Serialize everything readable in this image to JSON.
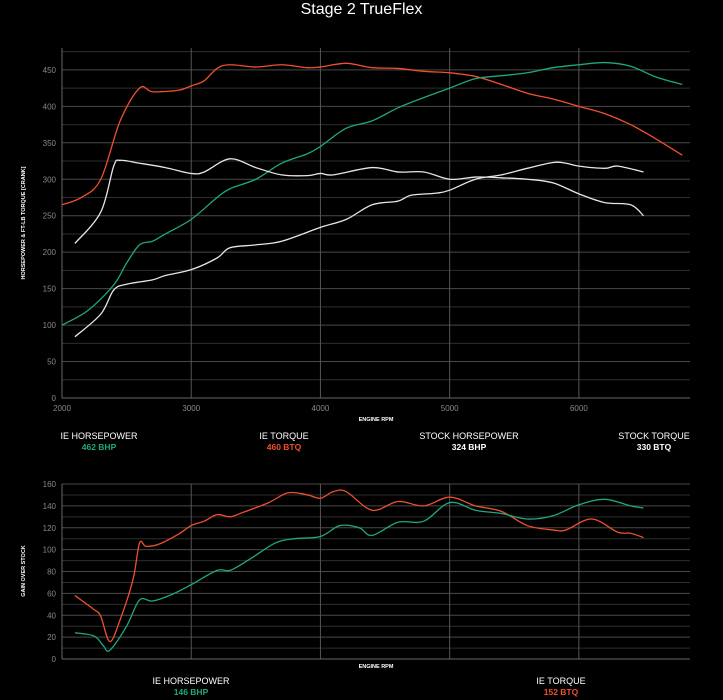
{
  "title": "Stage 2 TrueFlex",
  "colors": {
    "ie_torque": "#f0502c",
    "ie_horsepower": "#1fa880",
    "stock": "#e6e6e6"
  },
  "chart_data": [
    {
      "type": "line",
      "xlabel": "ENGINE RPM",
      "ylabel": "HORSEPOWER & FT-LB TORQUE [CRANK]",
      "xlim": [
        2000,
        6860
      ],
      "ylim": [
        0,
        480
      ],
      "xticks": [
        2000,
        3000,
        4000,
        5000,
        6000
      ],
      "yticks": [
        0,
        50,
        100,
        150,
        200,
        250,
        300,
        350,
        400,
        450
      ],
      "grid": true,
      "series": [
        {
          "key": "ie_torque",
          "x": [
            2000,
            2150,
            2300,
            2450,
            2600,
            2700,
            2900,
            3000,
            3100,
            3200,
            3300,
            3500,
            3700,
            3900,
            4000,
            4200,
            4400,
            4600,
            4800,
            5000,
            5200,
            5400,
            5600,
            5800,
            6000,
            6200,
            6400,
            6600,
            6800
          ],
          "values": [
            265,
            275,
            300,
            380,
            425,
            420,
            422,
            428,
            435,
            452,
            457,
            454,
            457,
            453,
            454,
            459,
            453,
            452,
            448,
            446,
            441,
            430,
            418,
            410,
            400,
            390,
            375,
            355,
            333
          ]
        },
        {
          "key": "ie_horsepower",
          "x": [
            2000,
            2200,
            2400,
            2500,
            2600,
            2700,
            2800,
            3000,
            3200,
            3300,
            3500,
            3700,
            3900,
            4000,
            4200,
            4400,
            4600,
            4800,
            5000,
            5200,
            5400,
            5600,
            5800,
            6000,
            6200,
            6400,
            6600,
            6800
          ],
          "values": [
            100,
            120,
            155,
            185,
            210,
            215,
            225,
            245,
            275,
            287,
            300,
            322,
            335,
            345,
            370,
            380,
            398,
            412,
            425,
            438,
            442,
            446,
            453,
            457,
            460,
            455,
            440,
            430
          ]
        },
        {
          "key": "stock",
          "x": [
            2100,
            2300,
            2400,
            2450,
            2600,
            2800,
            3000,
            3100,
            3300,
            3500,
            3700,
            3900,
            4000,
            4100,
            4400,
            4600,
            4800,
            5000,
            5200,
            5400,
            5600,
            5800,
            6000,
            6200,
            6400,
            6500
          ],
          "values": [
            212,
            255,
            318,
            326,
            322,
            316,
            308,
            310,
            328,
            316,
            306,
            305,
            308,
            306,
            316,
            310,
            310,
            300,
            303,
            302,
            300,
            295,
            280,
            268,
            265,
            250
          ]
        },
        {
          "key": "stock",
          "x": [
            2100,
            2300,
            2400,
            2500,
            2700,
            2800,
            3000,
            3200,
            3300,
            3500,
            3700,
            4000,
            4200,
            4400,
            4600,
            4700,
            4900,
            5000,
            5200,
            5400,
            5600,
            5800,
            5900,
            6000,
            6200,
            6300,
            6500
          ],
          "values": [
            84,
            115,
            148,
            156,
            162,
            168,
            176,
            192,
            206,
            210,
            215,
            234,
            245,
            265,
            270,
            278,
            281,
            285,
            300,
            306,
            315,
            323,
            322,
            318,
            315,
            318,
            310
          ]
        }
      ],
      "legend": [
        {
          "label": "IE HORSEPOWER",
          "value": "462 BHP",
          "key": "ie_horsepower"
        },
        {
          "label": "IE TORQUE",
          "value": "460 BTQ",
          "key": "ie_torque"
        },
        {
          "label": "STOCK HORSEPOWER",
          "value": "324 BHP",
          "key": "stock"
        },
        {
          "label": "STOCK TORQUE",
          "value": "330 BTQ",
          "key": "stock"
        }
      ]
    },
    {
      "type": "line",
      "xlabel": "ENGINE RPM",
      "ylabel": "GAIN OVER STOCK",
      "xlim": [
        2000,
        6860
      ],
      "ylim": [
        0,
        160
      ],
      "xticks": [],
      "yticks": [
        0,
        20,
        40,
        60,
        80,
        100,
        120,
        140,
        160
      ],
      "grid": true,
      "series": [
        {
          "key": "ie_torque",
          "x": [
            2100,
            2250,
            2300,
            2370,
            2450,
            2550,
            2600,
            2650,
            2750,
            2900,
            3000,
            3100,
            3200,
            3300,
            3400,
            3600,
            3750,
            3900,
            4000,
            4100,
            4200,
            4400,
            4600,
            4800,
            5000,
            5200,
            5400,
            5600,
            5800,
            5900,
            6100,
            6300,
            6400,
            6500
          ],
          "values": [
            58,
            45,
            39,
            16,
            36,
            73,
            106,
            103,
            105,
            114,
            122,
            126,
            132,
            130,
            134,
            143,
            152,
            150,
            147,
            153,
            153,
            136,
            144,
            140,
            148,
            140,
            135,
            122,
            118,
            118,
            128,
            116,
            115,
            111
          ]
        },
        {
          "key": "ie_horsepower",
          "x": [
            2100,
            2250,
            2320,
            2370,
            2500,
            2600,
            2700,
            2850,
            3000,
            3200,
            3300,
            3450,
            3650,
            3800,
            4000,
            4150,
            4300,
            4400,
            4600,
            4800,
            5000,
            5200,
            5400,
            5600,
            5800,
            6000,
            6200,
            6400,
            6500
          ],
          "values": [
            24,
            21,
            12,
            8,
            30,
            54,
            53,
            59,
            68,
            81,
            81,
            91,
            106,
            110,
            112,
            122,
            120,
            113,
            125,
            126,
            143,
            136,
            133,
            128,
            131,
            141,
            146,
            140,
            138
          ]
        }
      ],
      "legend": [
        {
          "label": "IE HORSEPOWER",
          "value": "146 BHP",
          "key": "ie_horsepower"
        },
        {
          "label": "IE TORQUE",
          "value": "152 BTQ",
          "key": "ie_torque"
        }
      ]
    }
  ]
}
